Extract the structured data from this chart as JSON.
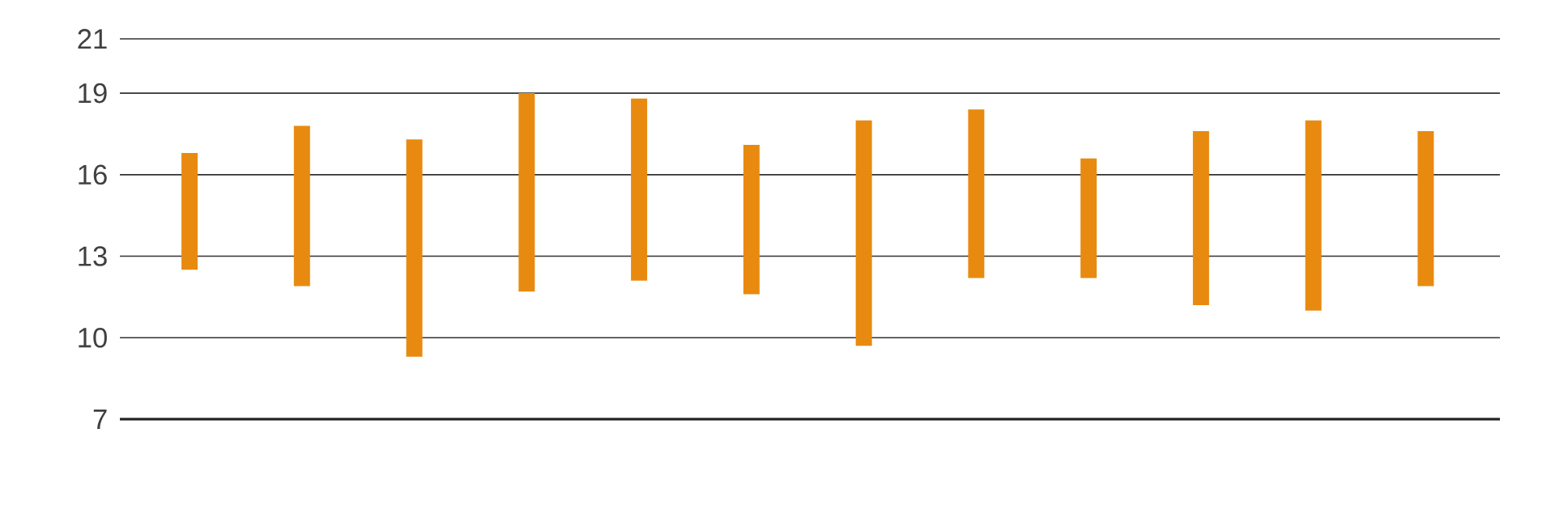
{
  "chart_data": {
    "type": "bar",
    "categories": [
      null,
      null,
      null,
      null,
      null,
      null,
      null,
      null,
      null,
      null,
      null,
      null
    ],
    "base": [
      12.5,
      11.9,
      9.3,
      11.7,
      12.1,
      11.6,
      9.7,
      12.2,
      12.2,
      11.2,
      11.0,
      11.9
    ],
    "values": [
      4.3,
      5.9,
      8.0,
      7.3,
      6.7,
      5.5,
      8.3,
      6.2,
      4.4,
      6.4,
      7.0,
      5.7
    ],
    "color": "#e88a10",
    "ylim": [
      7,
      21
    ],
    "yticks": [
      7,
      10,
      13,
      16,
      19,
      21
    ],
    "grid": "y",
    "tick_labels": "y"
  }
}
